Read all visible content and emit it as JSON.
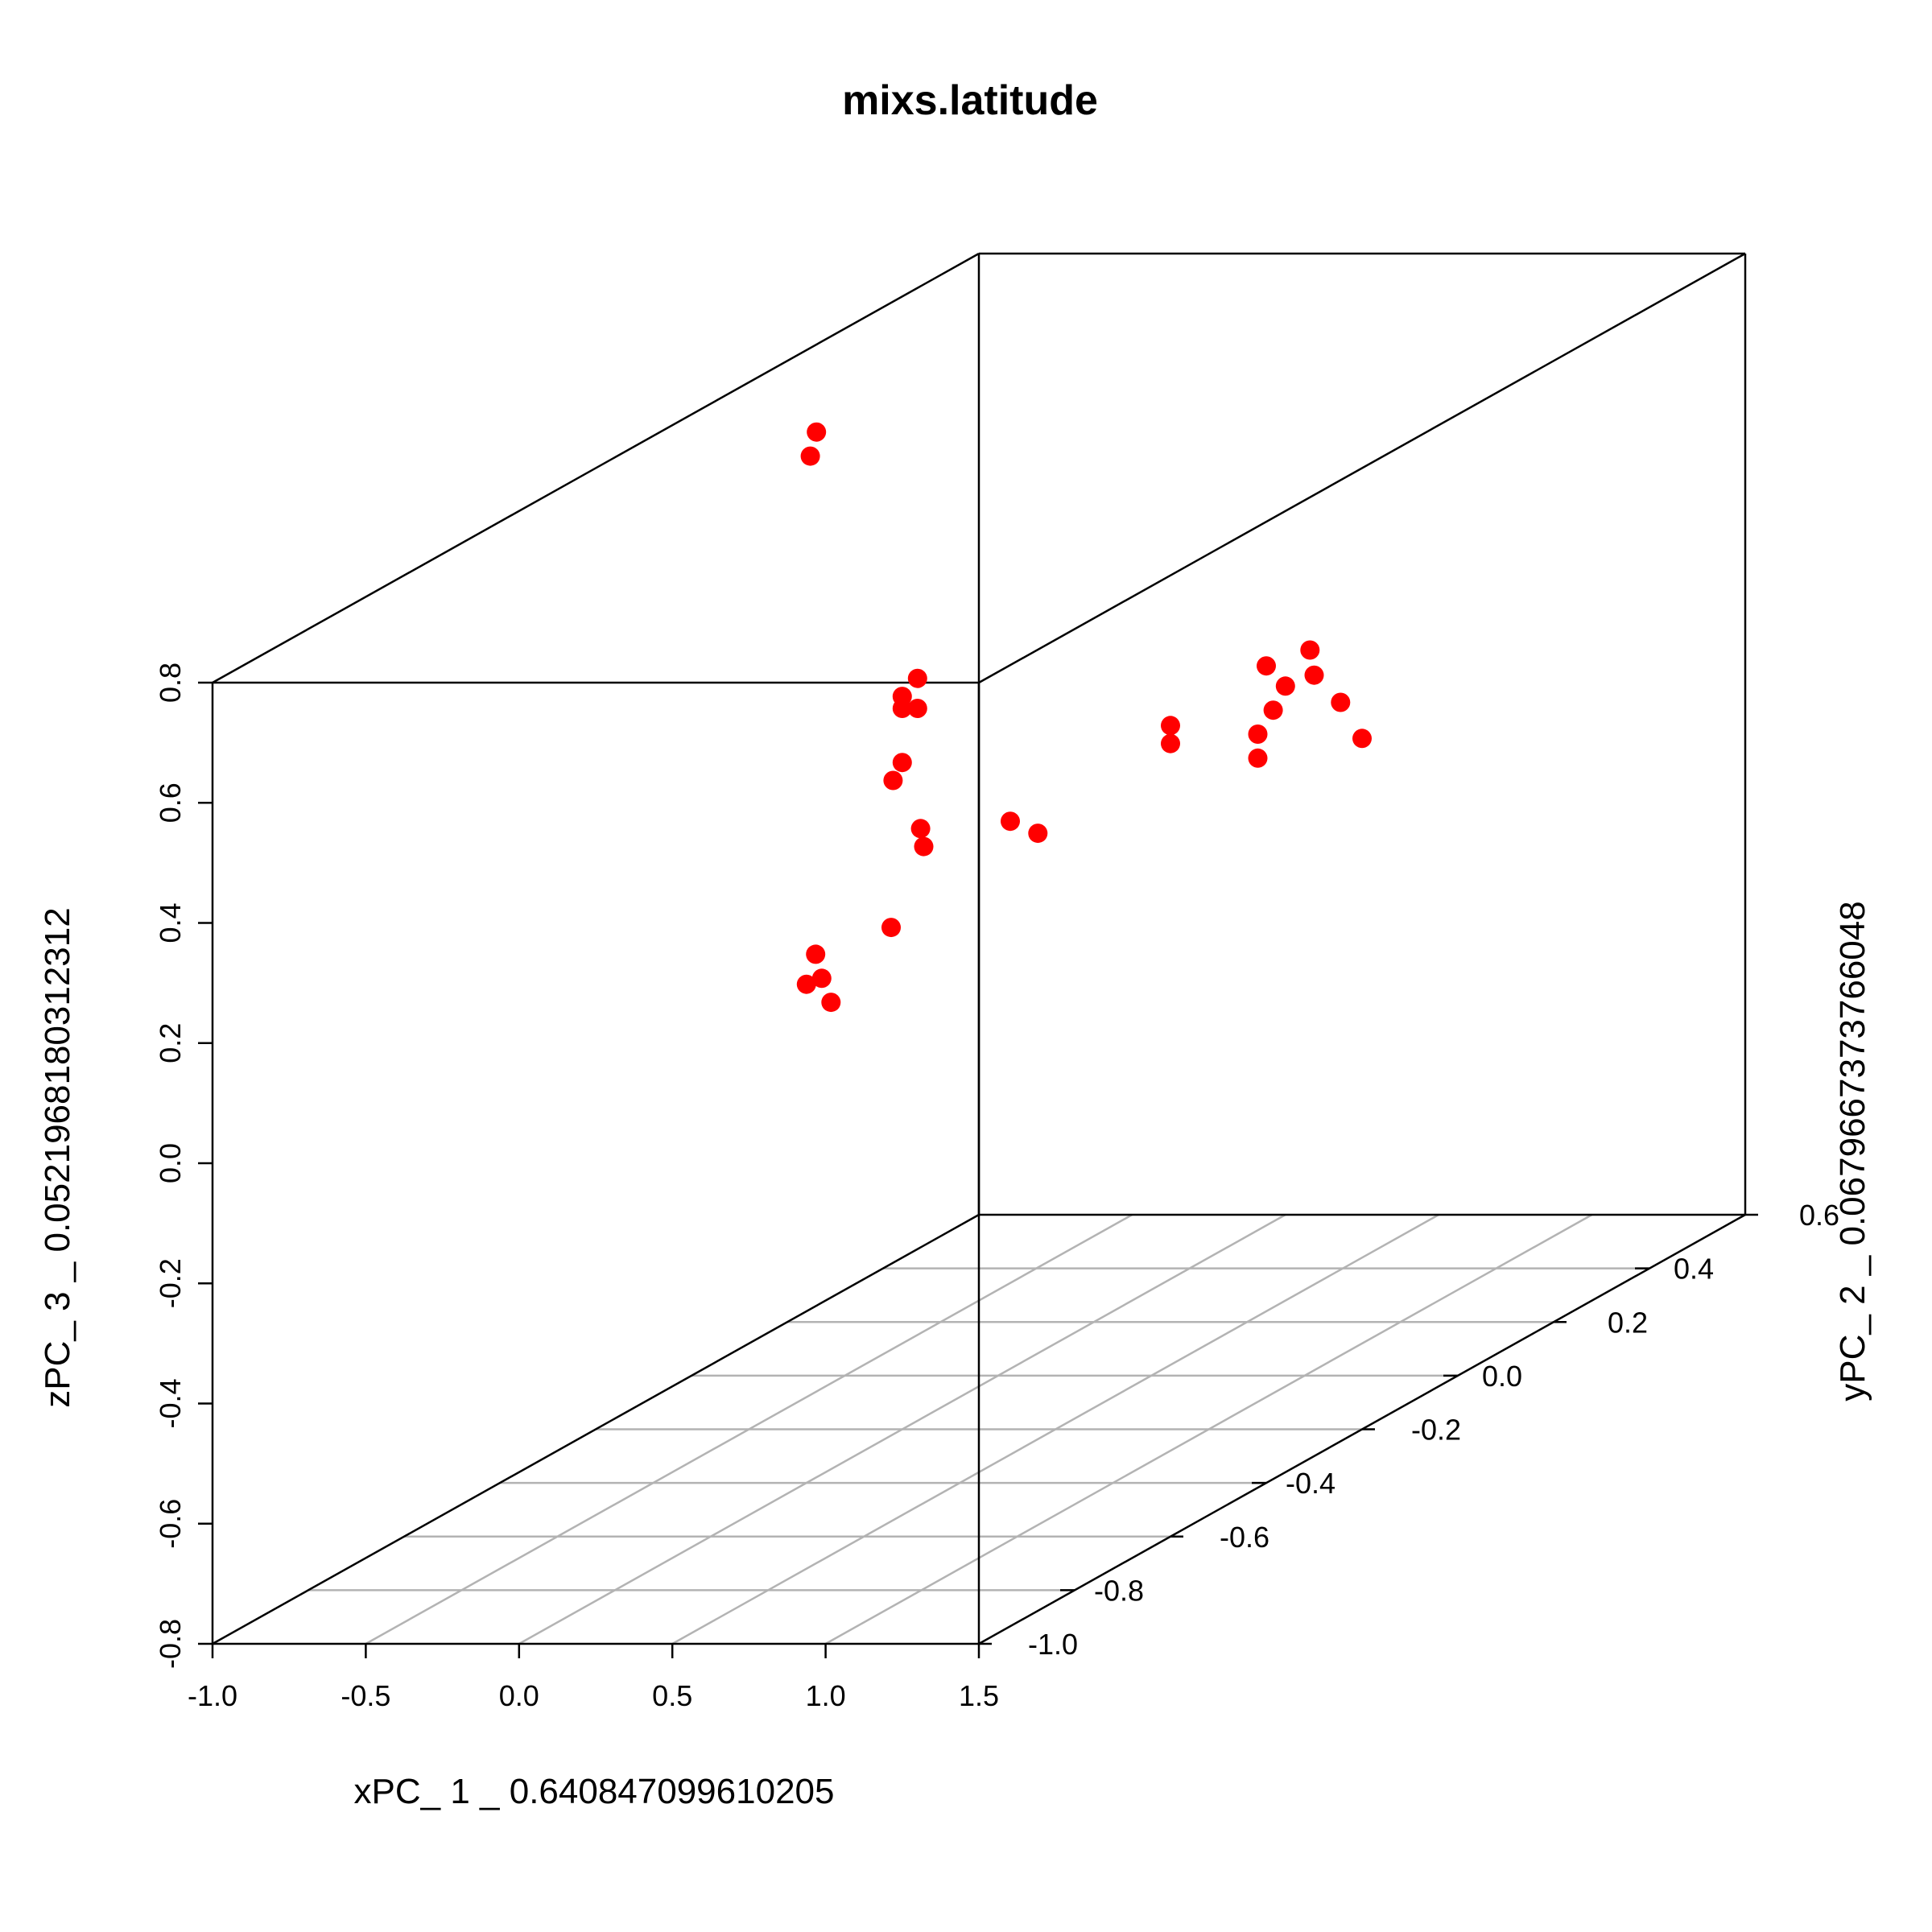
{
  "chart_data": {
    "type": "scatter",
    "title": "mixs.latitude",
    "xlabel": "xPC_ 1 _ 0.640847099610205",
    "ylabel": "yPC_ 2 _ 0.0679667373766048",
    "zlabel": "zPC_ 3 _ 0.0521968180312312",
    "xlim": [
      -1.0,
      1.5
    ],
    "ylim": [
      -1.0,
      0.6
    ],
    "zlim": [
      -0.8,
      0.8
    ],
    "x_ticks": [
      "-1.0",
      "-0.5",
      "0.0",
      "0.5",
      "1.0",
      "1.5"
    ],
    "y_ticks": [
      "-1.0",
      "-0.8",
      "-0.6",
      "-0.4",
      "-0.2",
      "0.0",
      "0.2",
      "0.4",
      "0.6"
    ],
    "z_ticks": [
      "-0.8",
      "-0.6",
      "-0.4",
      "-0.2",
      "0.0",
      "0.2",
      "0.4",
      "0.6",
      "0.8"
    ],
    "grid": true,
    "point_color": "#ff0000",
    "box_color": "#000000",
    "grid_color": "#b3b3b3",
    "points": [
      {
        "x": 0.08,
        "y": 0.6,
        "z": 0.14
      },
      {
        "x": 0.0,
        "y": 0.6,
        "z": 0.08
      },
      {
        "x": -0.04,
        "y": 0.6,
        "z": 0.04
      },
      {
        "x": -0.09,
        "y": 0.6,
        "z": 0.0
      },
      {
        "x": -0.09,
        "y": 0.6,
        "z": -0.04
      },
      {
        "x": -0.3,
        "y": -0.2,
        "z": 0.82
      },
      {
        "x": -0.28,
        "y": -0.2,
        "z": 0.86
      },
      {
        "x": 0.05,
        "y": -0.2,
        "z": 0.45
      },
      {
        "x": 0.0,
        "y": -0.2,
        "z": 0.42
      },
      {
        "x": 0.0,
        "y": -0.2,
        "z": 0.4
      },
      {
        "x": 0.05,
        "y": -0.2,
        "z": 0.4
      },
      {
        "x": 0.0,
        "y": -0.2,
        "z": 0.31
      },
      {
        "x": -0.03,
        "y": -0.2,
        "z": 0.28
      },
      {
        "x": 0.06,
        "y": -0.2,
        "z": 0.2
      },
      {
        "x": 0.07,
        "y": -0.2,
        "z": 0.17
      },
      {
        "x": 0.12,
        "y": -0.3,
        "z": 0.08
      },
      {
        "x": 0.03,
        "y": -0.4,
        "z": 0.08
      },
      {
        "x": 0.05,
        "y": -0.4,
        "z": 0.04
      },
      {
        "x": 0.0,
        "y": -0.4,
        "z": 0.03
      },
      {
        "x": 0.08,
        "y": -0.4,
        "z": 0.0
      },
      {
        "x": 1.43,
        "y": -0.2,
        "z": 0.41
      },
      {
        "x": 1.5,
        "y": -0.2,
        "z": 0.35
      },
      {
        "x": 1.29,
        "y": -0.8,
        "z": 0.48
      },
      {
        "x": 1.38,
        "y": -0.8,
        "z": 0.46
      },
      {
        "x": 1.5,
        "y": -0.6,
        "z": 0.55
      },
      {
        "x": 1.5,
        "y": -0.6,
        "z": 0.52
      },
      {
        "x": 1.5,
        "y": -0.4,
        "z": 0.56
      },
      {
        "x": 1.5,
        "y": -0.3,
        "z": 0.5
      }
    ]
  }
}
